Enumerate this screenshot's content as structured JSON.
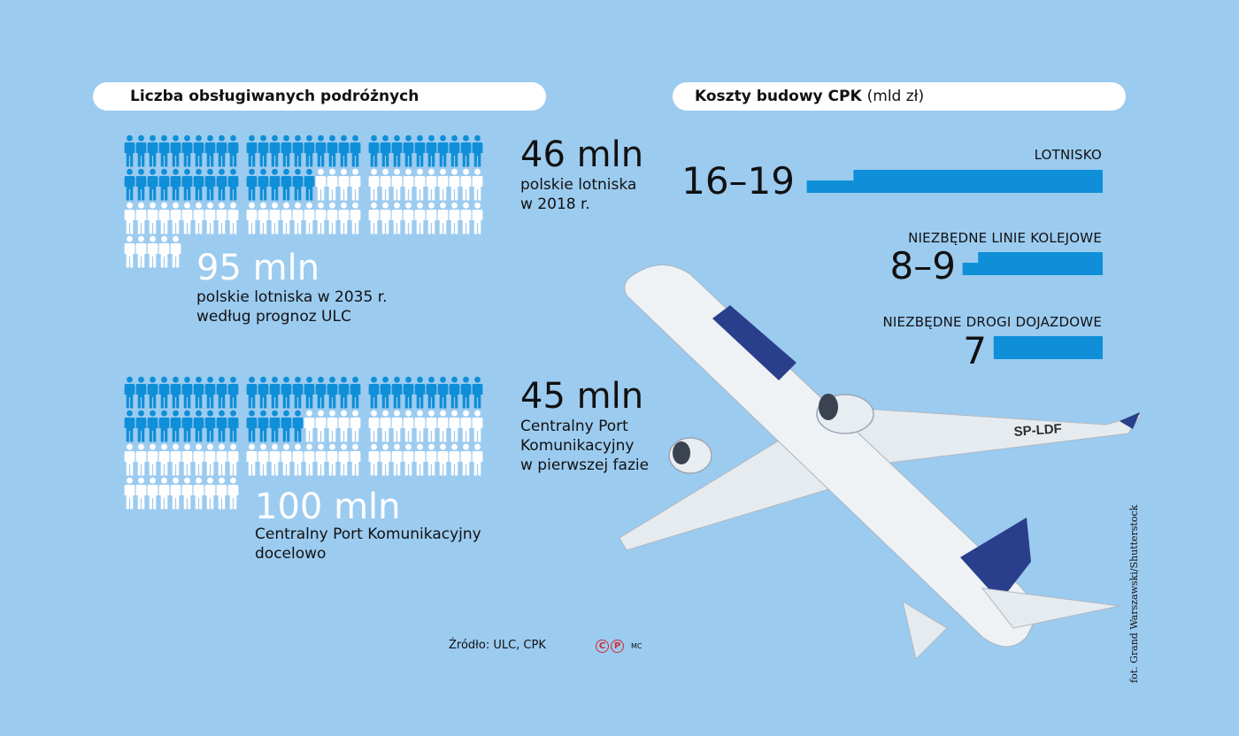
{
  "left_header": "Liczba obsługiwanych podróżnych",
  "right_header": {
    "title": "Koszty budowy CPK",
    "unit": "(mld zł)"
  },
  "travelers": [
    {
      "scale_total_mln": 95,
      "filled_mln": 46,
      "value_label": "46 mln",
      "value_desc": [
        "polskie lotniska",
        "w 2018 r."
      ],
      "total_label": "95 mln",
      "total_desc": [
        "polskie lotniska w 2035 r.",
        "według prognoz ULC"
      ]
    },
    {
      "scale_total_mln": 100,
      "filled_mln": 45,
      "value_label": "45 mln",
      "value_desc": [
        "Centralny Port",
        "Komunikacyjny",
        "w pierwszej fazie"
      ],
      "total_label": "100 mln",
      "total_desc": [
        "Centralny Port Komunikacyjny",
        "docelowo"
      ]
    }
  ],
  "chart_data": [
    {
      "type": "bar",
      "title": "Koszty budowy CPK",
      "unit": "mld zł",
      "orientation": "horizontal",
      "categories": [
        "LOTNISKO",
        "NIEZBĘDNE LINIE KOLEJOWE",
        "NIEZBĘDNE DROGI DOJAZDOWE"
      ],
      "ranges": [
        [
          16,
          19
        ],
        [
          8,
          9
        ],
        [
          7,
          7
        ]
      ],
      "value_labels": [
        "16–19",
        "8–9",
        "7"
      ],
      "bar_color": "#0f8fd7"
    }
  ],
  "source": "Źródło: ULC, CPK",
  "cp_letters": [
    "C",
    "P"
  ],
  "cp_suffix": "MC",
  "photo_credit": "fot. Grand Warszawski/Shutterstock",
  "aircraft_registration": "SP-LDF",
  "colors": {
    "background": "#9ccbf0",
    "accent": "#0f8fd7",
    "empty_person": "#ffffff",
    "cp_red": "#d22b2b"
  }
}
